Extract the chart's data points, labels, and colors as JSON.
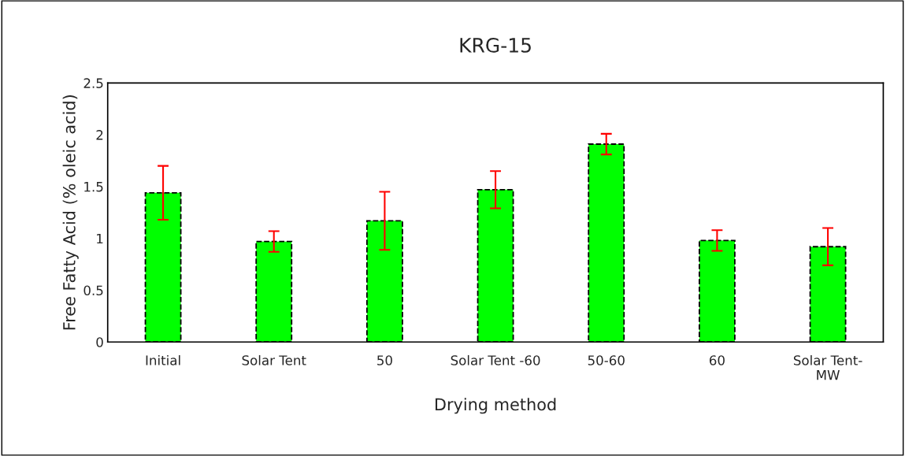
{
  "chart_data": {
    "type": "bar",
    "title": "KRG-15",
    "xlabel": "Drying method",
    "ylabel": "Free Fatty Acid (% oleic acid)",
    "categories": [
      "Initial",
      "Solar Tent",
      "50",
      "Solar Tent -60",
      "50-60",
      "60",
      "Solar Tent-\nMW"
    ],
    "values": [
      1.44,
      0.97,
      1.17,
      1.47,
      1.91,
      0.98,
      0.92
    ],
    "errors": [
      0.26,
      0.1,
      0.28,
      0.18,
      0.1,
      0.1,
      0.18
    ],
    "color": "#00ff00",
    "ylim": [
      0,
      2.5
    ],
    "yticks": [
      0,
      0.5,
      1,
      1.5,
      2,
      2.5
    ],
    "grid": false
  }
}
